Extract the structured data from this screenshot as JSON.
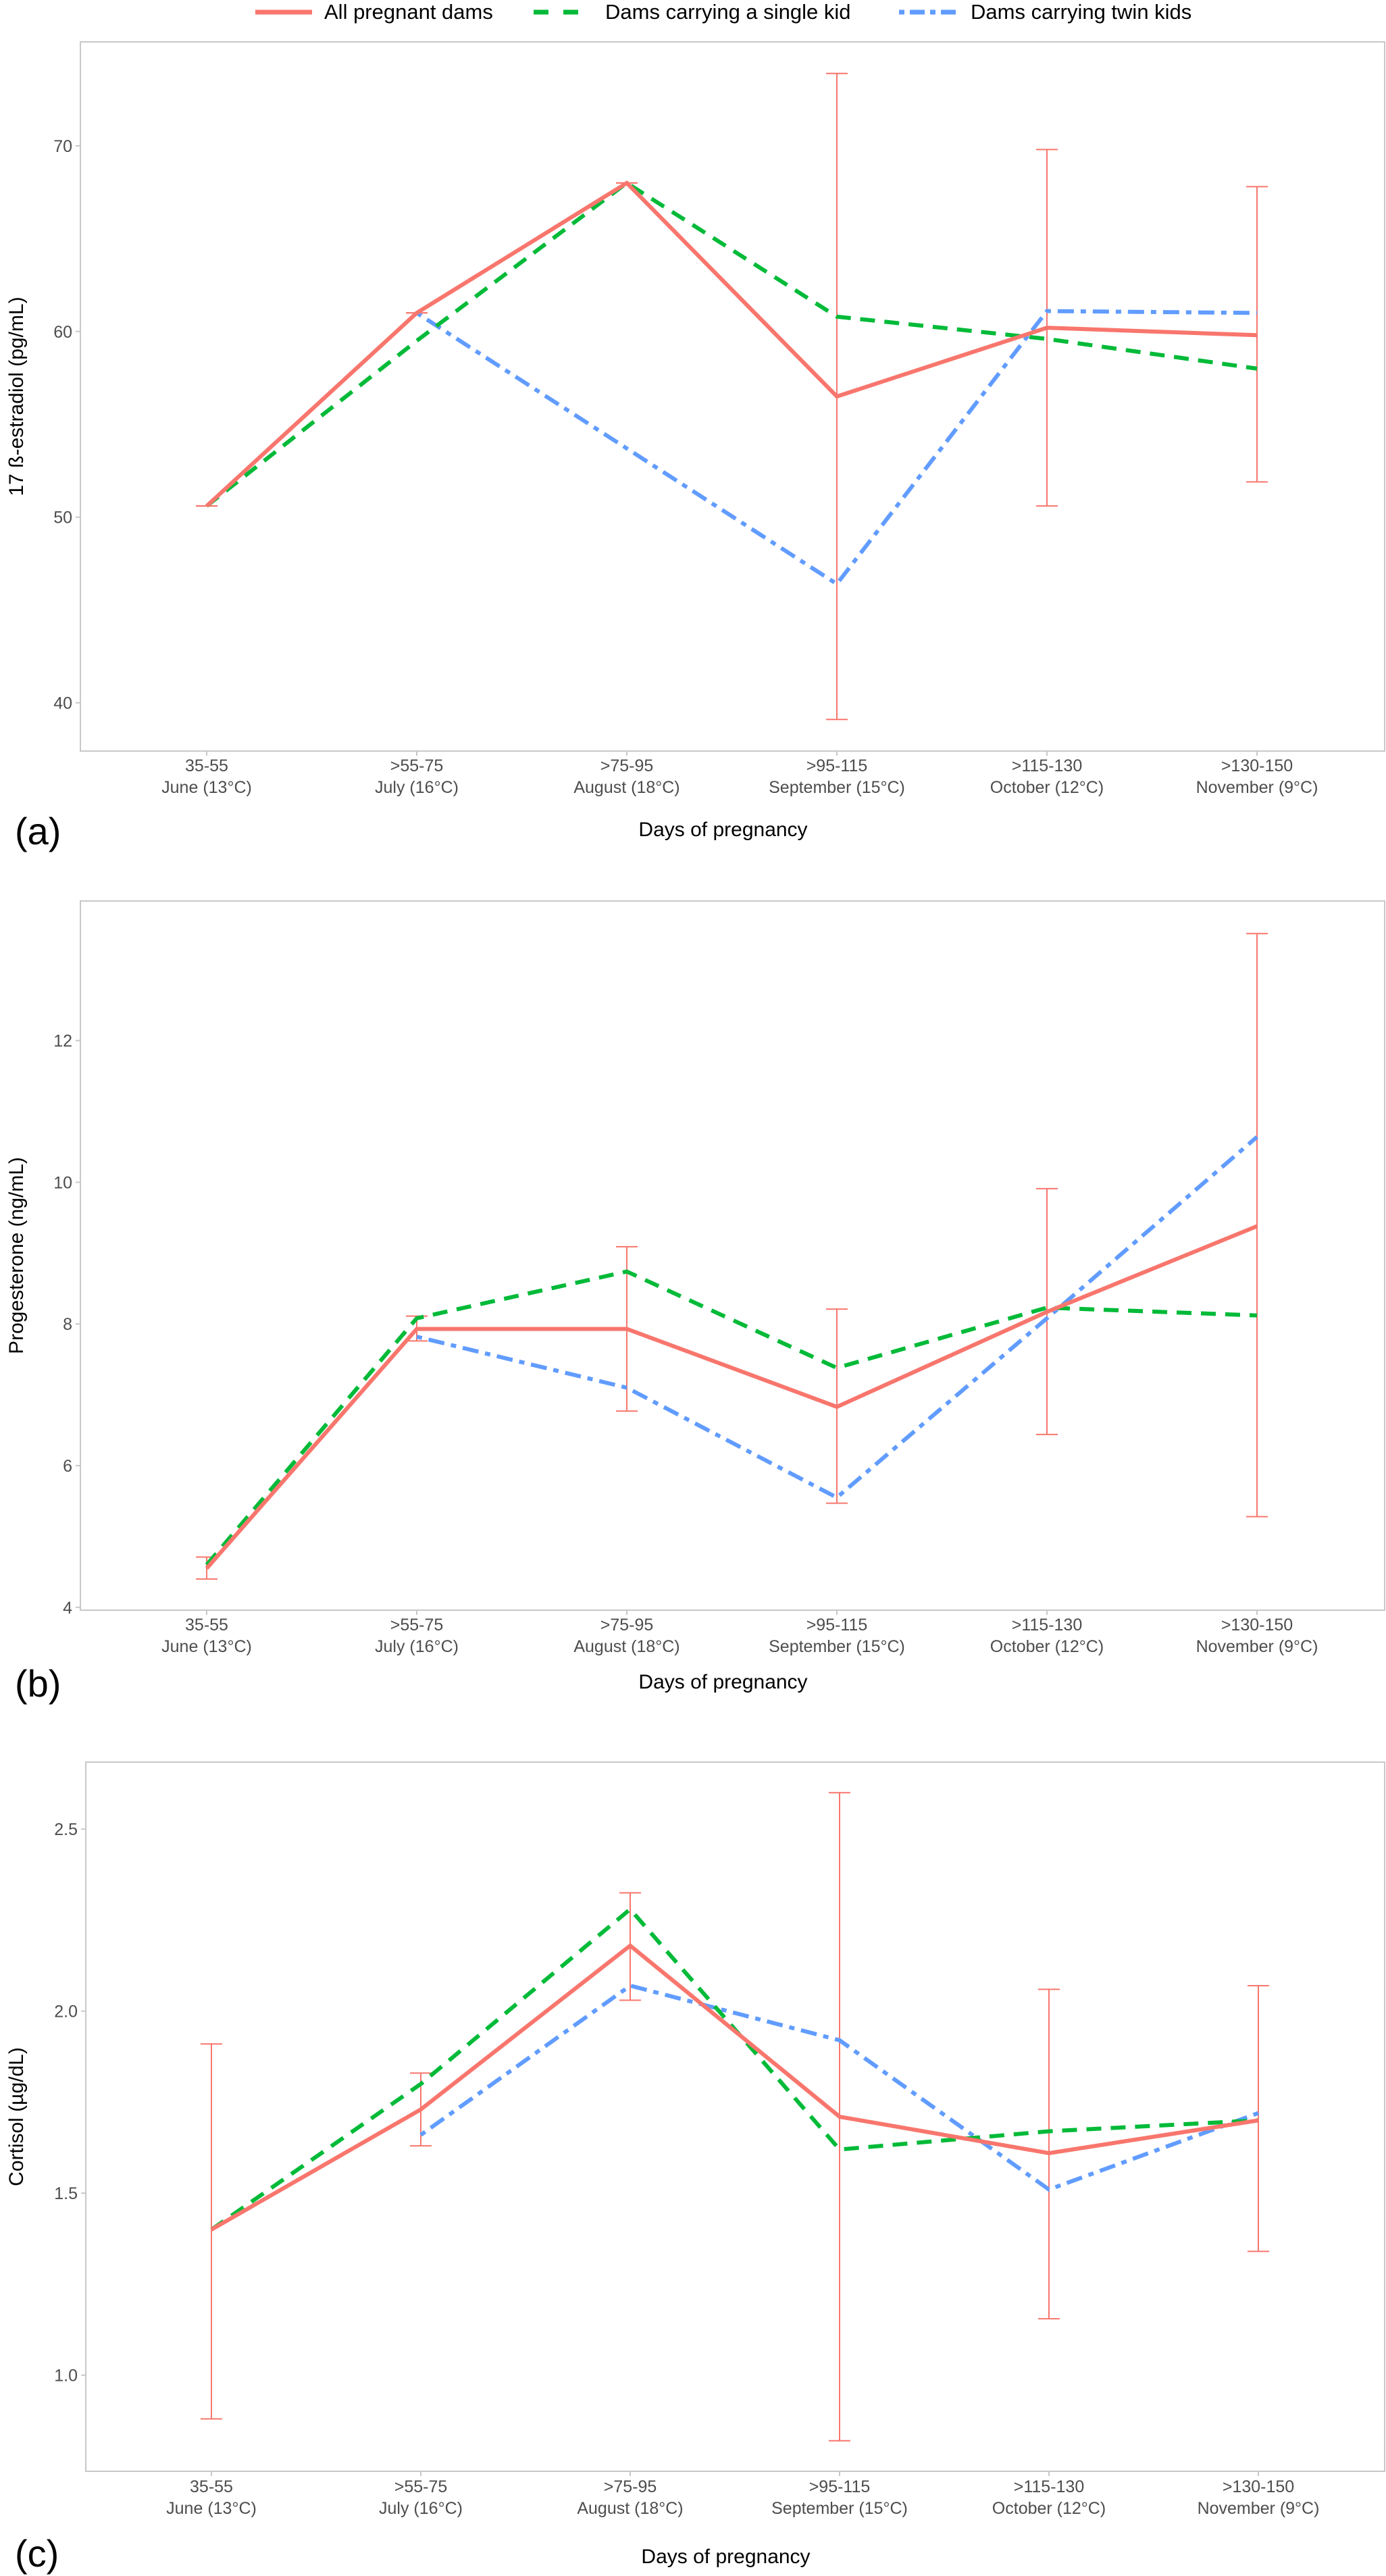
{
  "legend": {
    "position": "top-center",
    "items": [
      {
        "label": "All pregnant dams",
        "color": "#F8766D",
        "dash": "solid"
      },
      {
        "label": "Dams carrying a single kid",
        "color": "#00BA38",
        "dash": "dashed"
      },
      {
        "label": "Dams carrying twin kids",
        "color": "#619CFF",
        "dash": "dotdash"
      }
    ]
  },
  "chart_data": [
    {
      "type": "line",
      "panel_label": "(a)",
      "title": "",
      "xlabel": "Days of pregnancy",
      "ylabel": "17 ß-estradiol (pg/mL)",
      "categories": [
        "35-55\nJune (13°C)",
        ">55-75\nJuly (16°C)",
        ">75-95\nAugust (18°C)",
        ">95-115\nSeptember (15°C)",
        ">115-130\nOctober (12°C)",
        ">130-150\nNovember (9°C)"
      ],
      "category_lines": [
        [
          "35-55",
          "June (13°C)"
        ],
        [
          ">55-75",
          "July (16°C)"
        ],
        [
          ">75-95",
          "August (18°C)"
        ],
        [
          ">95-115",
          "September (15°C)"
        ],
        [
          ">115-130",
          "October (12°C)"
        ],
        [
          ">130-150",
          "November (9°C)"
        ]
      ],
      "ylim": [
        37.4,
        75.6
      ],
      "yticks": [
        40,
        50,
        60,
        70
      ],
      "ytick_labels": [
        "40",
        "50",
        "60",
        "70"
      ],
      "grid": false,
      "series": [
        {
          "name": "All pregnant dams",
          "values": [
            50.6,
            61.0,
            68.0,
            56.5,
            60.2,
            59.8
          ],
          "error_low": [
            50.6,
            61.0,
            68.0,
            39.1,
            50.6,
            51.9
          ],
          "error_high": [
            50.6,
            61.0,
            68.0,
            73.9,
            69.8,
            67.8
          ]
        },
        {
          "name": "Dams carrying a single kid",
          "values": [
            50.6,
            59.5,
            68.0,
            60.8,
            59.6,
            58.0
          ]
        },
        {
          "name": "Dams carrying twin kids",
          "values": [
            null,
            61.0,
            53.7,
            46.4,
            61.1,
            61.0
          ]
        }
      ]
    },
    {
      "type": "line",
      "panel_label": "(b)",
      "title": "",
      "xlabel": "Days of pregnancy",
      "ylabel": "Progesterone (ng/mL)",
      "categories": [
        "35-55\nJune (13°C)",
        ">55-75\nJuly (16°C)",
        ">75-95\nAugust (18°C)",
        ">95-115\nSeptember (15°C)",
        ">115-130\nOctober (12°C)",
        ">130-150\nNovember (9°C)"
      ],
      "category_lines": [
        [
          "35-55",
          "June (13°C)"
        ],
        [
          ">55-75",
          "July (16°C)"
        ],
        [
          ">75-95",
          "August (18°C)"
        ],
        [
          ">95-115",
          "September (15°C)"
        ],
        [
          ">115-130",
          "October (12°C)"
        ],
        [
          ">130-150",
          "November (9°C)"
        ]
      ],
      "ylim": [
        3.96,
        13.97
      ],
      "yticks": [
        4,
        6,
        8,
        10,
        12
      ],
      "ytick_labels": [
        "4",
        "6",
        "8",
        "10",
        "12"
      ],
      "grid": false,
      "series": [
        {
          "name": "All pregnant dams",
          "values": [
            4.55,
            7.93,
            7.93,
            6.83,
            8.17,
            9.38
          ],
          "error_low": [
            4.4,
            7.76,
            6.77,
            5.47,
            6.44,
            5.28
          ],
          "error_high": [
            4.71,
            8.11,
            9.09,
            8.21,
            9.91,
            13.51
          ]
        },
        {
          "name": "Dams carrying a single kid",
          "values": [
            4.6,
            8.08,
            8.74,
            7.38,
            8.23,
            8.12
          ]
        },
        {
          "name": "Dams carrying twin kids",
          "values": [
            null,
            7.82,
            7.1,
            5.55,
            8.08,
            10.64
          ]
        }
      ]
    },
    {
      "type": "line",
      "panel_label": "(c)",
      "title": "",
      "xlabel": "Days of pregnancy",
      "ylabel": "Cortisol (µg/dL)",
      "categories": [
        "35-55\nJune (13°C)",
        ">55-75\nJuly (16°C)",
        ">75-95\nAugust (18°C)",
        ">95-115\nSeptember (15°C)",
        ">115-130\nOctober (12°C)",
        ">130-150\nNovember (9°C)"
      ],
      "category_lines": [
        [
          "35-55",
          "June (13°C)"
        ],
        [
          ">55-75",
          "July (16°C)"
        ],
        [
          ">75-95",
          "August (18°C)"
        ],
        [
          ">95-115",
          "September (15°C)"
        ],
        [
          ">115-130",
          "October (12°C)"
        ],
        [
          ">130-150",
          "November (9°C)"
        ]
      ],
      "ylim": [
        0.736,
        2.684
      ],
      "yticks": [
        1.0,
        1.5,
        2.0,
        2.5
      ],
      "ytick_labels": [
        "1.0",
        "1.5",
        "2.0",
        "2.5"
      ],
      "grid": false,
      "series": [
        {
          "name": "All pregnant dams",
          "values": [
            1.4,
            1.73,
            2.18,
            1.71,
            1.61,
            1.7
          ],
          "error_low": [
            0.88,
            1.63,
            2.03,
            0.82,
            1.155,
            1.34
          ],
          "error_high": [
            1.91,
            1.83,
            2.325,
            2.6,
            2.06,
            2.07
          ]
        },
        {
          "name": "Dams carrying a single kid",
          "values": [
            1.4,
            1.8,
            2.28,
            1.62,
            1.67,
            1.7
          ]
        },
        {
          "name": "Dams carrying twin kids",
          "values": [
            null,
            1.66,
            2.07,
            1.92,
            1.51,
            1.72
          ]
        }
      ]
    }
  ]
}
